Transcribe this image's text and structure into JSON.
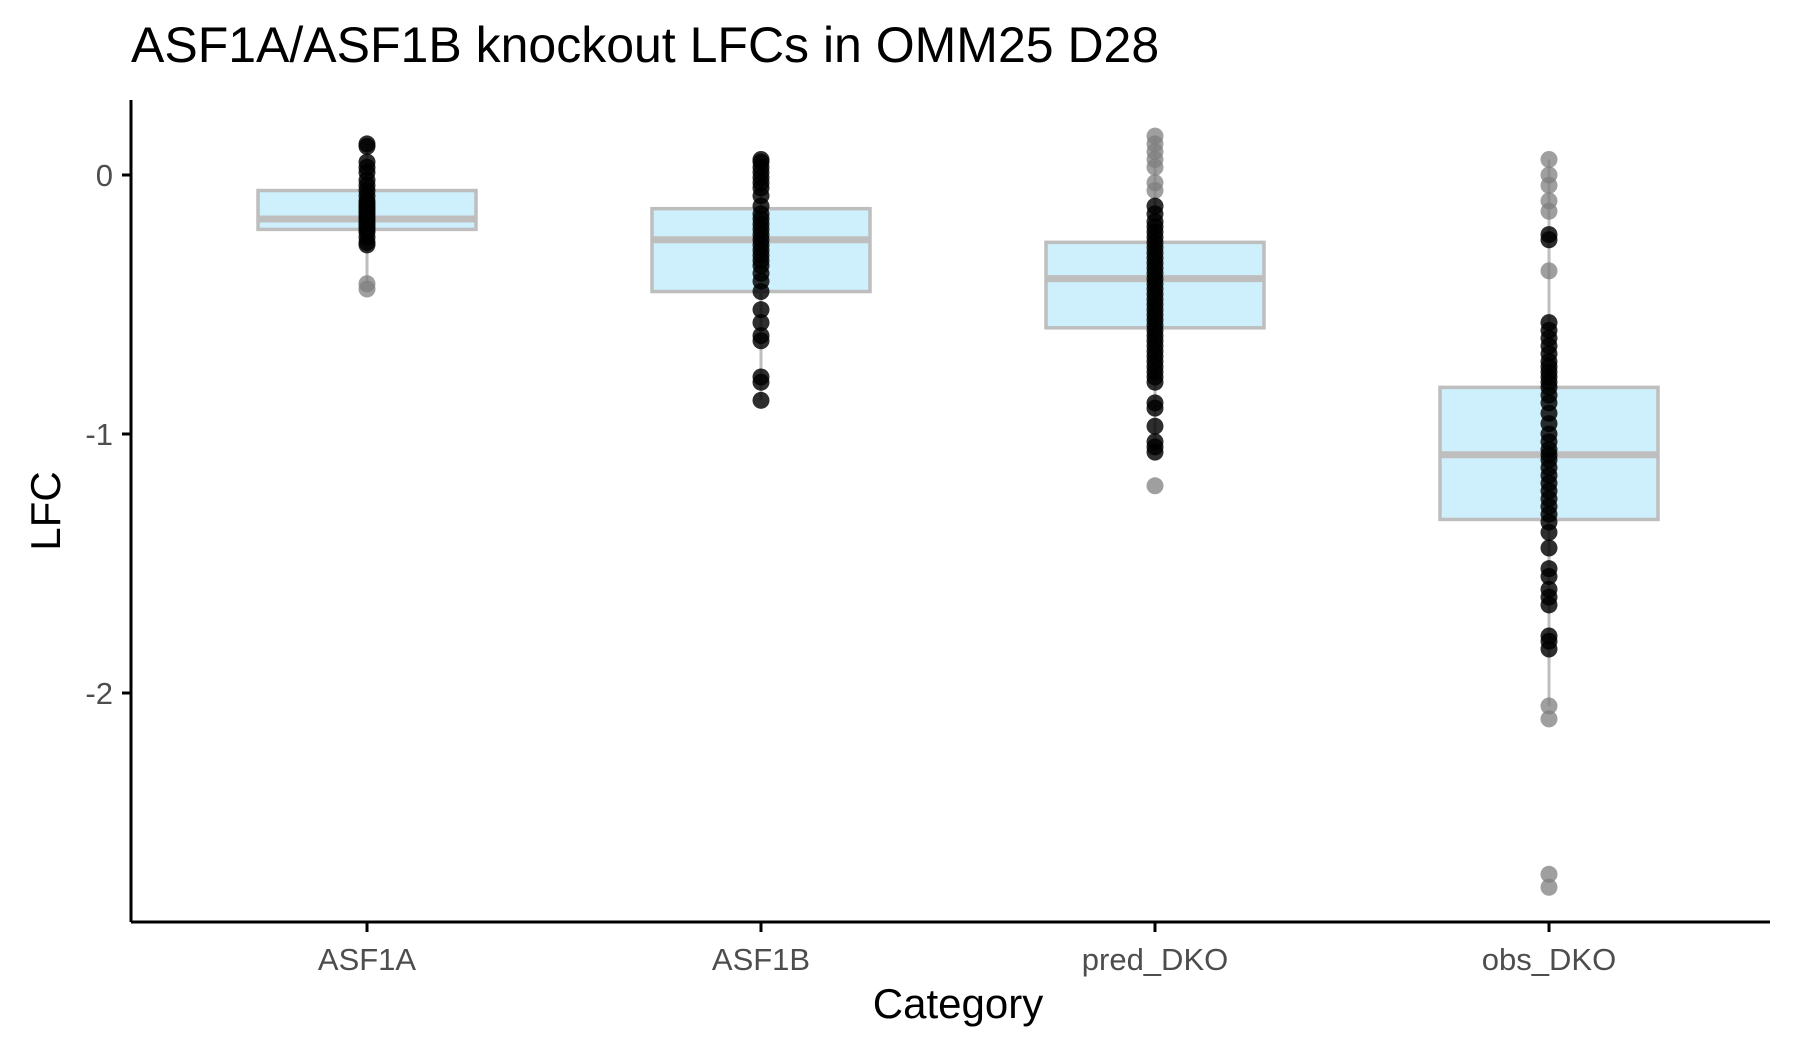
{
  "chart_data": {
    "type": "boxplot",
    "title": "ASF1A/ASF1B knockout LFCs in OMM25 D28",
    "xlabel": "Category",
    "ylabel": "LFC",
    "ylim": [
      -2.88,
      0.3
    ],
    "yticks": [
      0,
      -1,
      -2
    ],
    "ytick_labels": [
      "0",
      "-1",
      "-2"
    ],
    "categories": [
      "ASF1A",
      "ASF1B",
      "pred_DKO",
      "obs_DKO"
    ],
    "grid": false,
    "legend": "none",
    "colors": {
      "box_fill": "#cdf0fc",
      "box_line": "#bebebe",
      "point_dark": "#000000",
      "point_light": "#7f7f7f",
      "axis": "#000000"
    },
    "boxes": [
      {
        "category": "ASF1A",
        "q1": -0.21,
        "median": -0.17,
        "q3": -0.06,
        "whisker_low": -0.42,
        "whisker_high": 0.12
      },
      {
        "category": "ASF1B",
        "q1": -0.45,
        "median": -0.25,
        "q3": -0.13,
        "whisker_low": -0.87,
        "whisker_high": 0.06
      },
      {
        "category": "pred_DKO",
        "q1": -0.59,
        "median": -0.4,
        "q3": -0.26,
        "whisker_low": -1.07,
        "whisker_high": 0.15
      },
      {
        "category": "obs_DKO",
        "q1": -1.33,
        "median": -1.08,
        "q3": -0.82,
        "whisker_low": -2.05,
        "whisker_high": 0.06
      }
    ],
    "points": [
      {
        "category": "ASF1A",
        "shade": "dark",
        "values": [
          0.12,
          0.11,
          0.05,
          0.03,
          0.01,
          -0.02,
          -0.04,
          -0.06,
          -0.08,
          -0.1,
          -0.11,
          -0.12,
          -0.13,
          -0.14,
          -0.15,
          -0.16,
          -0.17,
          -0.18,
          -0.19,
          -0.2,
          -0.21,
          -0.22,
          -0.24,
          -0.26,
          -0.27
        ]
      },
      {
        "category": "ASF1A",
        "shade": "light",
        "values": [
          -0.42,
          -0.44
        ]
      },
      {
        "category": "ASF1B",
        "shade": "dark",
        "values": [
          0.06,
          0.05,
          0.03,
          0.01,
          -0.01,
          -0.03,
          -0.05,
          -0.08,
          -0.12,
          -0.15,
          -0.17,
          -0.19,
          -0.21,
          -0.23,
          -0.25,
          -0.27,
          -0.29,
          -0.31,
          -0.33,
          -0.35,
          -0.38,
          -0.41,
          -0.45,
          -0.52,
          -0.57,
          -0.62,
          -0.64,
          -0.78,
          -0.8,
          -0.87
        ]
      },
      {
        "category": "pred_DKO",
        "shade": "light",
        "values": [
          0.15,
          0.12,
          0.09,
          0.06,
          0.03,
          -0.03,
          -0.06,
          -1.2
        ]
      },
      {
        "category": "pred_DKO",
        "shade": "dark",
        "values": [
          -0.12,
          -0.15,
          -0.18,
          -0.2,
          -0.22,
          -0.24,
          -0.26,
          -0.28,
          -0.3,
          -0.32,
          -0.34,
          -0.36,
          -0.38,
          -0.4,
          -0.42,
          -0.44,
          -0.46,
          -0.48,
          -0.5,
          -0.52,
          -0.54,
          -0.56,
          -0.58,
          -0.6,
          -0.62,
          -0.64,
          -0.66,
          -0.68,
          -0.7,
          -0.72,
          -0.74,
          -0.76,
          -0.78,
          -0.8,
          -0.88,
          -0.9,
          -0.97,
          -1.03,
          -1.05,
          -1.07
        ]
      },
      {
        "category": "obs_DKO",
        "shade": "light",
        "values": [
          0.06,
          0.0,
          -0.04,
          -0.1,
          -0.14,
          -0.37,
          -2.05,
          -2.1,
          -2.7,
          -2.75
        ]
      },
      {
        "category": "obs_DKO",
        "shade": "dark",
        "values": [
          -0.23,
          -0.25,
          -0.57,
          -0.6,
          -0.63,
          -0.66,
          -0.69,
          -0.72,
          -0.74,
          -0.76,
          -0.78,
          -0.8,
          -0.82,
          -0.85,
          -0.88,
          -0.92,
          -0.96,
          -1.0,
          -1.03,
          -1.06,
          -1.08,
          -1.1,
          -1.13,
          -1.16,
          -1.19,
          -1.22,
          -1.25,
          -1.28,
          -1.31,
          -1.34,
          -1.38,
          -1.44,
          -1.52,
          -1.55,
          -1.6,
          -1.63,
          -1.66,
          -1.78,
          -1.8,
          -1.83
        ]
      }
    ]
  }
}
